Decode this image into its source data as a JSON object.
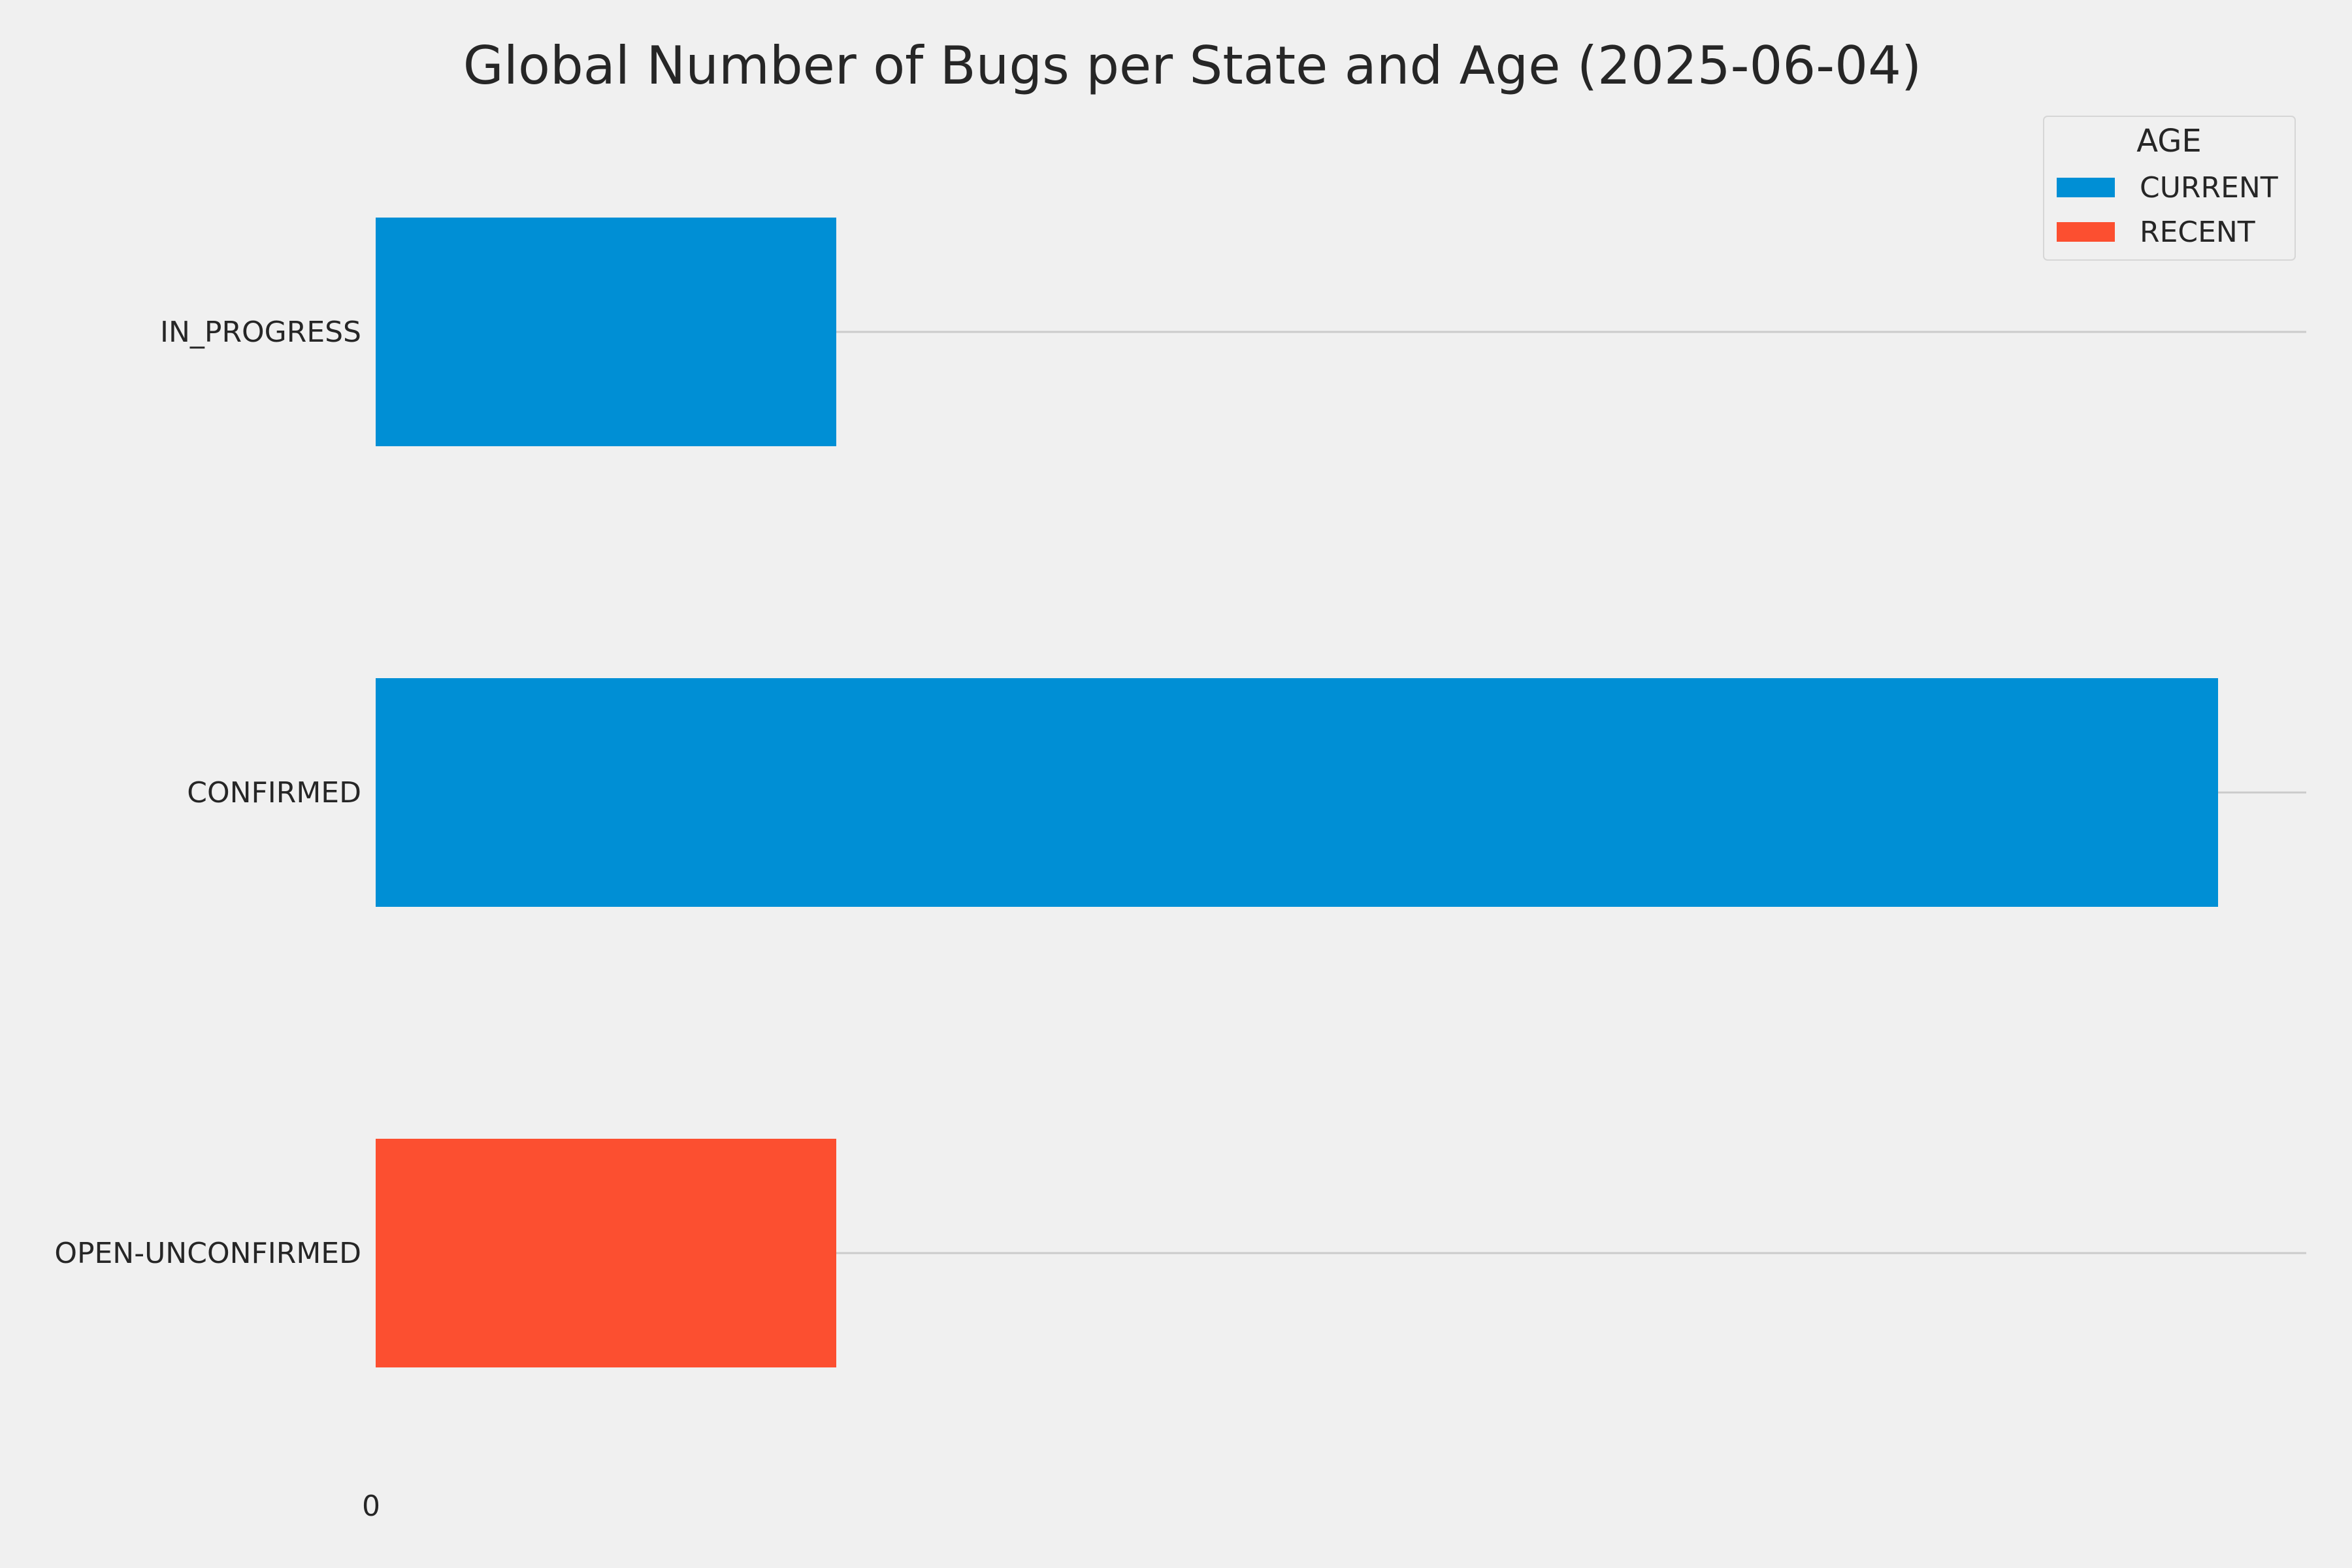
{
  "chart_data": {
    "type": "bar",
    "orientation": "horizontal",
    "title": "Global Number of Bugs per State and Age (2025-06-04)",
    "xlabel": "",
    "ylabel": "",
    "categories": [
      "IN_PROGRESS",
      "CONFIRMED",
      "OPEN-UNCONFIRMED"
    ],
    "series": [
      {
        "name": "CURRENT",
        "color": "#008fd5",
        "values": [
          1,
          4,
          0
        ]
      },
      {
        "name": "RECENT",
        "color": "#fc4f30",
        "values": [
          0,
          0,
          1
        ]
      }
    ],
    "stacked": true,
    "x_ticks": [
      "0"
    ],
    "xlim": [
      0,
      4.2
    ],
    "grid": "horizontal lines at category positions",
    "legend": {
      "title": "AGE",
      "placement": "top-right",
      "entries": [
        "CURRENT",
        "RECENT"
      ]
    },
    "colors": {
      "background": "#f0f0f0",
      "grid": "#cbcbcb",
      "text": "#262626"
    }
  }
}
